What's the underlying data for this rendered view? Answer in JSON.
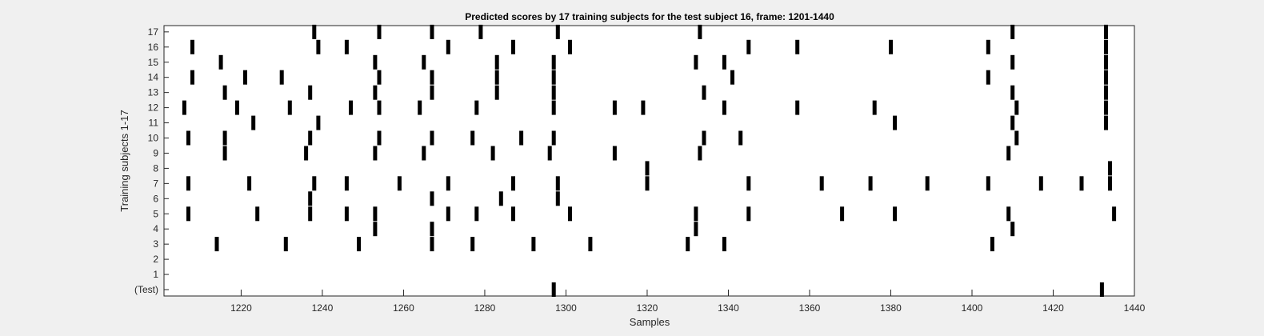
{
  "chart_data": {
    "type": "scatter",
    "title": "Predicted scores by 17 training subjects for the test subject 16, frame: 1201-1440",
    "xlabel": "Samples",
    "ylabel": "Training subjects 1-17",
    "xlim": [
      1201,
      1440
    ],
    "xticks": [
      1220,
      1240,
      1260,
      1280,
      1300,
      1320,
      1340,
      1360,
      1380,
      1400,
      1420,
      1440
    ],
    "yticks": [
      {
        "value": 0,
        "label": "(Test)"
      },
      {
        "value": 1,
        "label": "1"
      },
      {
        "value": 2,
        "label": "2"
      },
      {
        "value": 3,
        "label": "3"
      },
      {
        "value": 4,
        "label": "4"
      },
      {
        "value": 5,
        "label": "5"
      },
      {
        "value": 6,
        "label": "6"
      },
      {
        "value": 7,
        "label": "7"
      },
      {
        "value": 8,
        "label": "8"
      },
      {
        "value": 9,
        "label": "9"
      },
      {
        "value": 10,
        "label": "10"
      },
      {
        "value": 11,
        "label": "11"
      },
      {
        "value": 12,
        "label": "12"
      },
      {
        "value": 13,
        "label": "13"
      },
      {
        "value": 14,
        "label": "14"
      },
      {
        "value": 15,
        "label": "15"
      },
      {
        "value": 16,
        "label": "16"
      },
      {
        "value": 17,
        "label": "17"
      }
    ],
    "grid": false,
    "mark_color": "#000000",
    "series": [
      {
        "row": 0,
        "x": [
          1297,
          1432
        ]
      },
      {
        "row": 1,
        "x": []
      },
      {
        "row": 2,
        "x": []
      },
      {
        "row": 3,
        "x": [
          1214,
          1231,
          1249,
          1267,
          1277,
          1292,
          1306,
          1330,
          1339,
          1405
        ]
      },
      {
        "row": 4,
        "x": [
          1253,
          1267,
          1332,
          1410
        ]
      },
      {
        "row": 5,
        "x": [
          1207,
          1224,
          1237,
          1246,
          1253,
          1271,
          1278,
          1287,
          1301,
          1332,
          1345,
          1368,
          1381,
          1409,
          1435
        ]
      },
      {
        "row": 6,
        "x": [
          1237,
          1267,
          1284,
          1298
        ]
      },
      {
        "row": 7,
        "x": [
          1207,
          1222,
          1238,
          1246,
          1259,
          1271,
          1287,
          1298,
          1320,
          1345,
          1363,
          1375,
          1389,
          1404,
          1417,
          1427,
          1434
        ]
      },
      {
        "row": 8,
        "x": [
          1320,
          1434
        ]
      },
      {
        "row": 9,
        "x": [
          1216,
          1236,
          1253,
          1265,
          1282,
          1296,
          1312,
          1333,
          1409
        ]
      },
      {
        "row": 10,
        "x": [
          1207,
          1216,
          1237,
          1254,
          1267,
          1277,
          1289,
          1297,
          1334,
          1343,
          1411
        ]
      },
      {
        "row": 11,
        "x": [
          1223,
          1239,
          1381,
          1410,
          1433
        ]
      },
      {
        "row": 12,
        "x": [
          1206,
          1219,
          1232,
          1247,
          1254,
          1264,
          1278,
          1297,
          1312,
          1319,
          1339,
          1357,
          1376,
          1411,
          1433
        ]
      },
      {
        "row": 13,
        "x": [
          1216,
          1237,
          1253,
          1267,
          1283,
          1297,
          1334,
          1410,
          1433
        ]
      },
      {
        "row": 14,
        "x": [
          1208,
          1221,
          1230,
          1254,
          1267,
          1283,
          1297,
          1341,
          1404,
          1433
        ]
      },
      {
        "row": 15,
        "x": [
          1215,
          1253,
          1265,
          1283,
          1297,
          1332,
          1339,
          1410,
          1433
        ]
      },
      {
        "row": 16,
        "x": [
          1208,
          1239,
          1246,
          1271,
          1287,
          1301,
          1345,
          1357,
          1380,
          1404,
          1433
        ]
      },
      {
        "row": 17,
        "x": [
          1238,
          1254,
          1267,
          1279,
          1298,
          1333,
          1410,
          1433
        ]
      }
    ]
  }
}
